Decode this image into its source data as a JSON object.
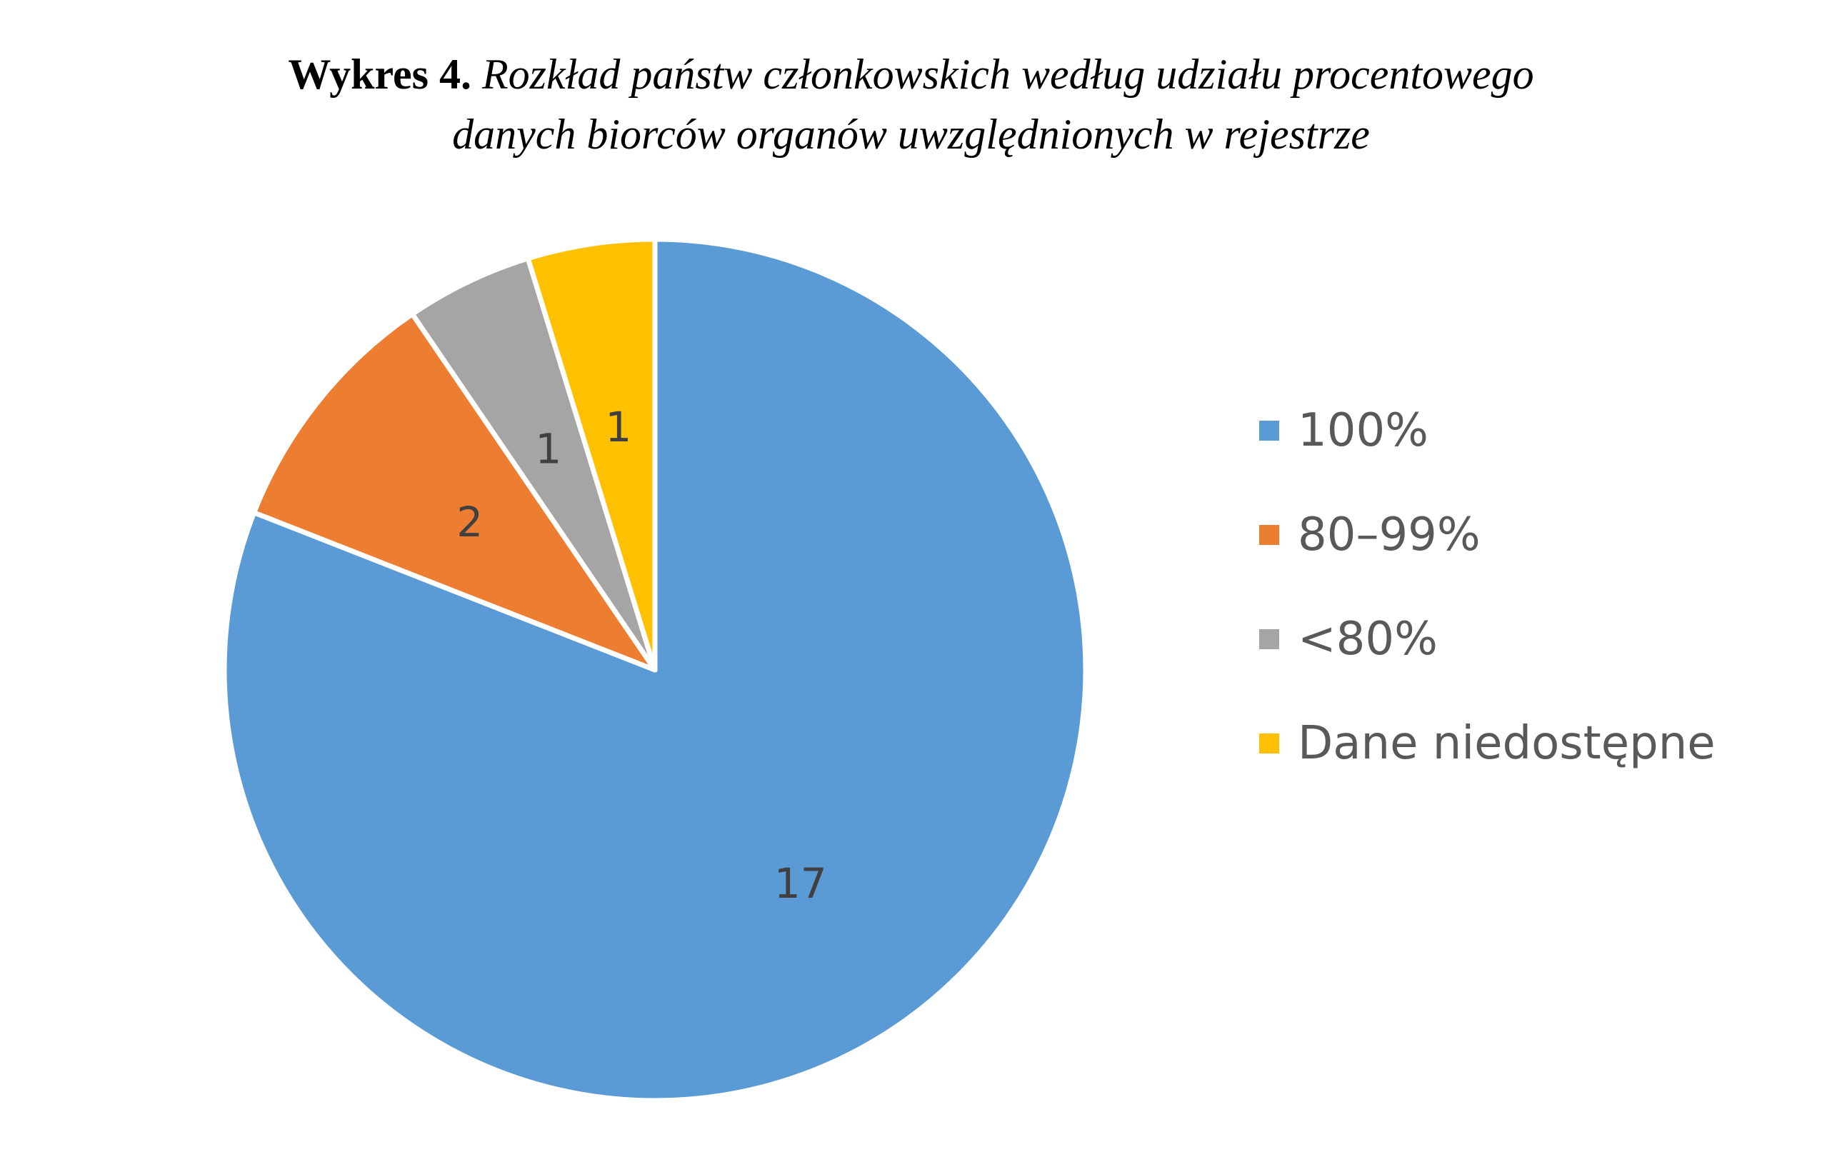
{
  "title": {
    "prefix": "Wykres 4.",
    "line1": "Rozkład państw członkowskich według udziału procentowego",
    "line2": "danych biorców organów uwzględnionych w rejestrze"
  },
  "chart_data": {
    "type": "pie",
    "title": "Wykres 4. Rozkład państw członkowskich według udziału procentowego danych biorców organów uwzględnionych w rejestrze",
    "categories": [
      "100%",
      "80–99%",
      "<80%",
      "Dane niedostępne"
    ],
    "values": [
      17,
      2,
      1,
      1
    ],
    "colors": [
      "#5B9BD5",
      "#ED7D31",
      "#A5A5A5",
      "#FFC000"
    ],
    "data_labels": [
      "17",
      "2",
      "1",
      "1"
    ],
    "legend_position": "right",
    "start_angle": "12 o'clock",
    "direction": "clockwise"
  }
}
